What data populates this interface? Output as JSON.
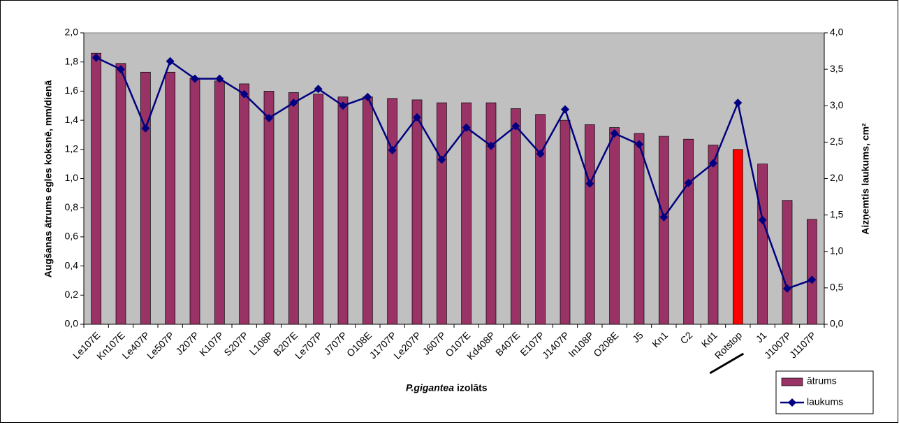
{
  "chart_data": {
    "type": "bar_line",
    "y_label": "Augšanas ātrums egles koksnē, mm/dienā",
    "y2_label": "Aizņemtis laukums, cm²",
    "x_label_species": "P.gigantea",
    "x_label_rest": "izolāts",
    "categories": [
      "Le107E",
      "Kn107E",
      "Le407P",
      "Le507P",
      "J207P",
      "K107P",
      "S207P",
      "L108P",
      "B207E",
      "Le707P",
      "J707P",
      "O108E",
      "J1707P",
      "Le207P",
      "J607P",
      "O107E",
      "Kd408P",
      "B407E",
      "E107P",
      "J1407P",
      "In108P",
      "O208E",
      "J5",
      "Kn1",
      "C2",
      "Kd1",
      "Rotstop",
      "J1",
      "J1007P",
      "J1107P"
    ],
    "series": [
      {
        "name": "ātrums",
        "type": "bar",
        "color": "#993366",
        "colors": [
          "#993366",
          "#993366",
          "#993366",
          "#993366",
          "#993366",
          "#993366",
          "#993366",
          "#993366",
          "#993366",
          "#993366",
          "#993366",
          "#993366",
          "#993366",
          "#993366",
          "#993366",
          "#993366",
          "#993366",
          "#993366",
          "#993366",
          "#993366",
          "#993366",
          "#993366",
          "#993366",
          "#993366",
          "#993366",
          "#993366",
          "#ff0000",
          "#993366",
          "#993366",
          "#993366"
        ],
        "values": [
          1.86,
          1.79,
          1.73,
          1.73,
          1.69,
          1.67,
          1.65,
          1.6,
          1.59,
          1.58,
          1.56,
          1.56,
          1.55,
          1.54,
          1.52,
          1.52,
          1.52,
          1.48,
          1.44,
          1.4,
          1.37,
          1.35,
          1.31,
          1.29,
          1.27,
          1.23,
          1.2,
          1.1,
          0.85,
          0.72
        ]
      },
      {
        "name": "laukums",
        "type": "line",
        "axis": "y2",
        "color": "#000080",
        "values": [
          3.66,
          3.5,
          2.69,
          3.61,
          3.37,
          3.37,
          3.16,
          2.83,
          3.04,
          3.23,
          3.0,
          3.12,
          2.39,
          2.84,
          2.26,
          2.7,
          2.45,
          2.72,
          2.34,
          2.95,
          1.93,
          2.62,
          2.47,
          1.47,
          1.94,
          2.21,
          3.04,
          1.43,
          0.49,
          0.61
        ]
      }
    ],
    "ylim": [
      0,
      2
    ],
    "yticks": [
      {
        "value": 0,
        "label": "0,0"
      },
      {
        "value": 0.2,
        "label": "0,2"
      },
      {
        "value": 0.4,
        "label": "0,4"
      },
      {
        "value": 0.6,
        "label": "0,6"
      },
      {
        "value": 0.8,
        "label": "0,8"
      },
      {
        "value": 1,
        "label": "1,0"
      },
      {
        "value": 1.2,
        "label": "1,2"
      },
      {
        "value": 1.4,
        "label": "1,4"
      },
      {
        "value": 1.6,
        "label": "1,6"
      },
      {
        "value": 1.8,
        "label": "1,8"
      },
      {
        "value": 2,
        "label": "2,0"
      }
    ],
    "y2lim": [
      0,
      4
    ],
    "y2ticks": [
      {
        "value": 0,
        "label": "0,0"
      },
      {
        "value": 0.5,
        "label": "0,5"
      },
      {
        "value": 1,
        "label": "1,0"
      },
      {
        "value": 1.5,
        "label": "1,5"
      },
      {
        "value": 2,
        "label": "2,0"
      },
      {
        "value": 2.5,
        "label": "2,5"
      },
      {
        "value": 3,
        "label": "3,0"
      },
      {
        "value": 3.5,
        "label": "3,5"
      },
      {
        "value": 4,
        "label": "4,0"
      }
    ],
    "plot_background": "#c0c0c0",
    "legend": "bottom-right"
  }
}
